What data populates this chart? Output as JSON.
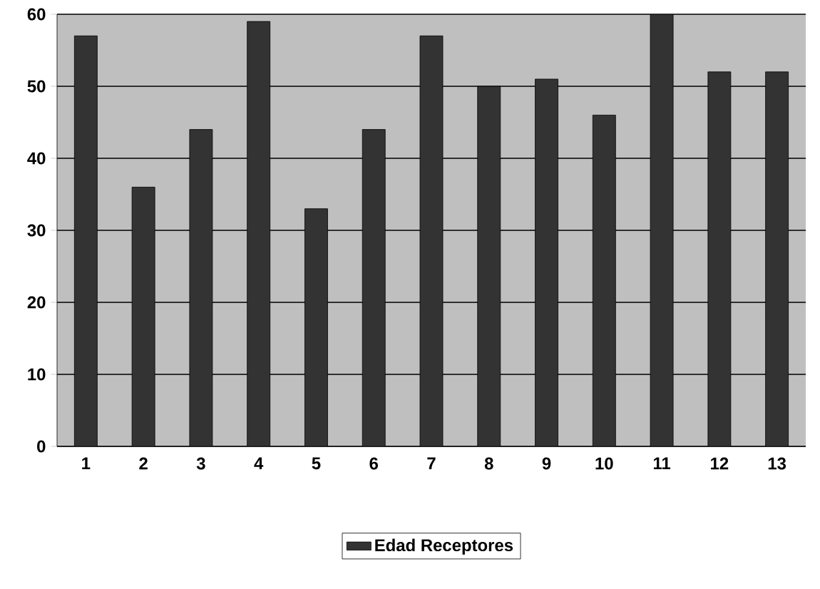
{
  "chart_data": {
    "type": "bar",
    "categories": [
      "1",
      "2",
      "3",
      "4",
      "5",
      "6",
      "7",
      "8",
      "9",
      "10",
      "11",
      "12",
      "13"
    ],
    "series": [
      {
        "name": "Edad Receptores",
        "color": "#333333",
        "values": [
          57,
          36,
          44,
          59,
          33,
          44,
          57,
          50,
          51,
          46,
          60,
          52,
          52
        ]
      }
    ],
    "ylim": [
      0,
      60
    ],
    "yticks": [
      0,
      10,
      20,
      30,
      40,
      50,
      60
    ],
    "grid": "y",
    "legend": "bottom"
  }
}
